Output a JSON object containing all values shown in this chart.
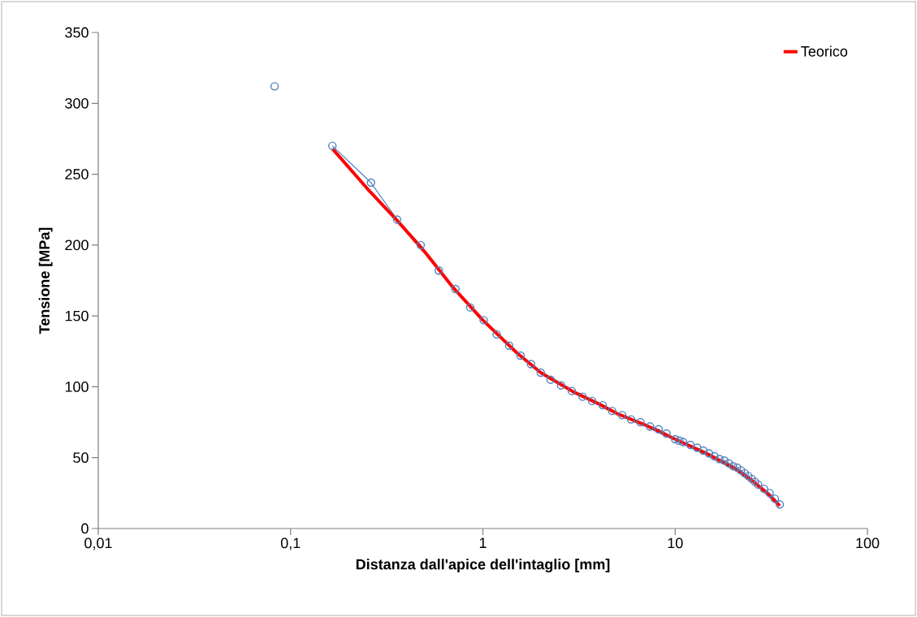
{
  "chart_data": {
    "type": "line",
    "xlabel": "Distanza dall'apice dell'intaglio [mm]",
    "ylabel": "Tensione [MPa]",
    "log": "x",
    "grid": false,
    "legend": "top right",
    "xlim": [
      0.01,
      100
    ],
    "xticks": [
      {
        "value": 0.01,
        "label": "0,01"
      },
      {
        "value": 0.1,
        "label": "0,1"
      },
      1,
      10,
      100
    ],
    "ylim": [
      0,
      350
    ],
    "yticks": [
      0,
      50,
      100,
      150,
      200,
      250,
      300,
      350
    ],
    "series": [
      {
        "type": "scatter",
        "color": "#4f81bd",
        "marker": "circle",
        "x": [
          0.0826
        ],
        "values": [
          312
        ]
      },
      {
        "color": "#4f81bd",
        "marker": "circle",
        "line_style": "solid",
        "x": [
          0.165,
          0.262,
          0.358,
          0.475,
          0.59,
          0.72,
          0.86,
          1.01,
          1.18,
          1.37,
          1.57,
          1.78,
          2.0,
          2.25,
          2.55,
          2.9,
          3.3,
          3.7,
          4.2,
          4.7,
          5.3,
          5.9,
          6.6,
          7.4,
          8.2,
          9.0,
          10.0,
          10.5,
          11,
          12,
          13,
          14,
          15,
          16,
          17,
          18,
          19,
          20,
          21,
          22,
          23,
          24,
          25,
          26,
          27,
          29,
          31,
          33,
          35
        ],
        "values": [
          270,
          244,
          218,
          200,
          182,
          169,
          156,
          147,
          137,
          129,
          122,
          116,
          110,
          105,
          101,
          97,
          93,
          90,
          87,
          83,
          80,
          77,
          75,
          72,
          70,
          67,
          63,
          62,
          61,
          59,
          57,
          55,
          53,
          51,
          49,
          48,
          46,
          44,
          43,
          41,
          39,
          37,
          35,
          33,
          31,
          28,
          25,
          21,
          17
        ]
      },
      {
        "name": "Teorico",
        "color": "#ff0000",
        "marker": "none",
        "line_style": "solid",
        "x": [
          0.165,
          0.25,
          0.36,
          0.5,
          0.7,
          1.0,
          1.5,
          2,
          3,
          4,
          5,
          7,
          10,
          15,
          20,
          25,
          30,
          35
        ],
        "values": [
          268,
          240,
          217,
          195,
          170,
          147,
          124,
          110,
          96,
          88,
          81,
          73,
          63,
          52,
          43,
          34,
          25,
          16
        ]
      }
    ]
  }
}
